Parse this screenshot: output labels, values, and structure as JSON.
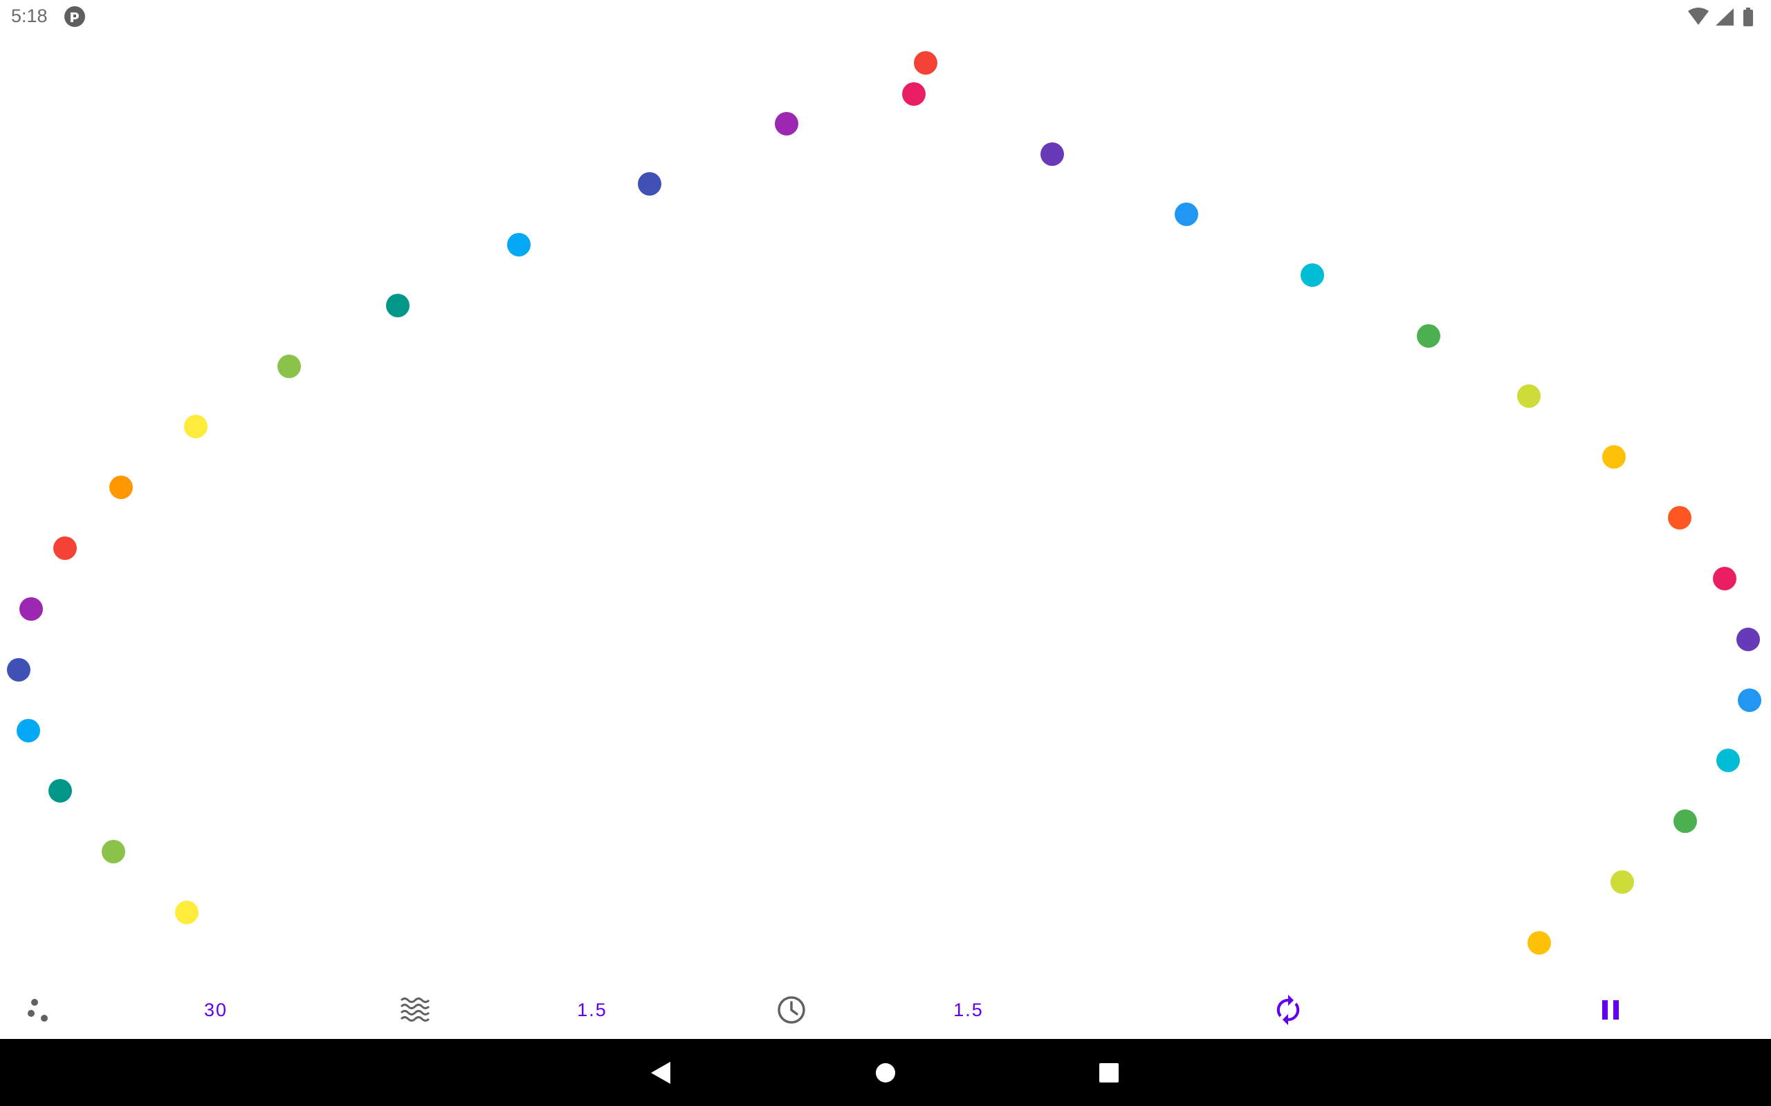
{
  "status_bar": {
    "time": "5:18",
    "app_icon": "pocket-casts-icon",
    "icons": [
      "wifi-icon",
      "cell-signal-icon",
      "battery-icon"
    ]
  },
  "animation": {
    "dots": [
      {
        "color": "#f44336"
      },
      {
        "color": "#e91e63"
      },
      {
        "color": "#9c27b0"
      },
      {
        "color": "#673ab7"
      },
      {
        "color": "#3f51b5"
      },
      {
        "color": "#2196f3"
      },
      {
        "color": "#03a9f4"
      },
      {
        "color": "#00bcd4"
      },
      {
        "color": "#009688"
      },
      {
        "color": "#4caf50"
      },
      {
        "color": "#8bc34a"
      },
      {
        "color": "#cddc39"
      },
      {
        "color": "#ffeb3b"
      },
      {
        "color": "#ffc107"
      },
      {
        "color": "#ff9800"
      },
      {
        "color": "#ff5722"
      },
      {
        "color": "#f44336"
      },
      {
        "color": "#e91e63"
      },
      {
        "color": "#9c27b0"
      },
      {
        "color": "#673ab7"
      },
      {
        "color": "#3f51b5"
      },
      {
        "color": "#2196f3"
      },
      {
        "color": "#03a9f4"
      },
      {
        "color": "#00bcd4"
      },
      {
        "color": "#009688"
      },
      {
        "color": "#4caf50"
      },
      {
        "color": "#8bc34a"
      },
      {
        "color": "#cddc39"
      },
      {
        "color": "#ffeb3b"
      },
      {
        "color": "#ffc107"
      }
    ]
  },
  "controls": {
    "dot_count_icon": "dots-icon",
    "dot_count": "30",
    "wave_icon": "waves-icon",
    "wave_value": "1.5",
    "speed_icon": "clock-icon",
    "speed_value": "1.5",
    "reset_icon": "refresh-icon",
    "pause_icon": "pause-icon",
    "accent_color": "#6200ee",
    "icon_color": "#616161"
  },
  "nav_bar": {
    "back_icon": "back-triangle-icon",
    "home_icon": "home-circle-icon",
    "recents_icon": "recents-square-icon"
  }
}
